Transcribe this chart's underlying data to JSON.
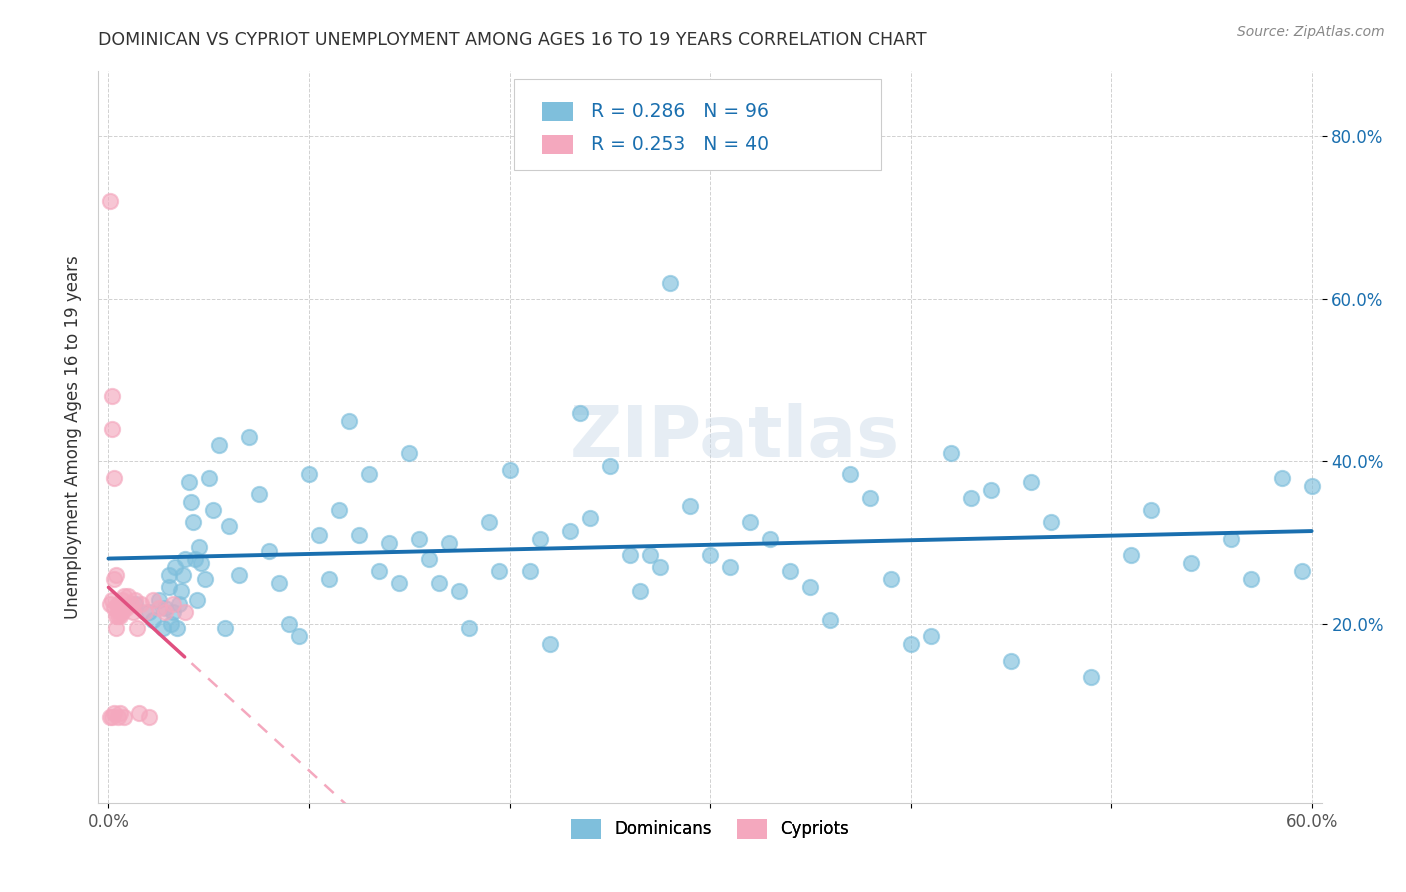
{
  "title": "DOMINICAN VS CYPRIOT UNEMPLOYMENT AMONG AGES 16 TO 19 YEARS CORRELATION CHART",
  "source": "Source: ZipAtlas.com",
  "ylabel": "Unemployment Among Ages 16 to 19 years",
  "xlim": [
    -0.005,
    0.605
  ],
  "ylim": [
    -0.02,
    0.88
  ],
  "xtick_positions": [
    0.0,
    0.1,
    0.2,
    0.3,
    0.4,
    0.5,
    0.6
  ],
  "xticklabels": [
    "0.0%",
    "",
    "",
    "",
    "",
    "",
    "60.0%"
  ],
  "ytick_positions": [
    0.2,
    0.4,
    0.6,
    0.8
  ],
  "ytick_labels": [
    "20.0%",
    "40.0%",
    "60.0%",
    "80.0%"
  ],
  "dominican_color": "#7fbfdc",
  "cypriot_color": "#f4a8be",
  "trend_dominican_color": "#1a6faf",
  "trend_cypriot_color": "#e05080",
  "trend_cypriot_dashed_color": "#f4a8be",
  "R_dominican": 0.286,
  "N_dominican": 96,
  "R_cypriot": 0.253,
  "N_cypriot": 40,
  "watermark": "ZIPatlas",
  "background_color": "#ffffff",
  "grid_color": "#cccccc",
  "legend_text_color": "#1a6faf",
  "title_color": "#333333",
  "ylabel_color": "#333333",
  "ytick_color": "#1a6faf",
  "source_color": "#888888"
}
